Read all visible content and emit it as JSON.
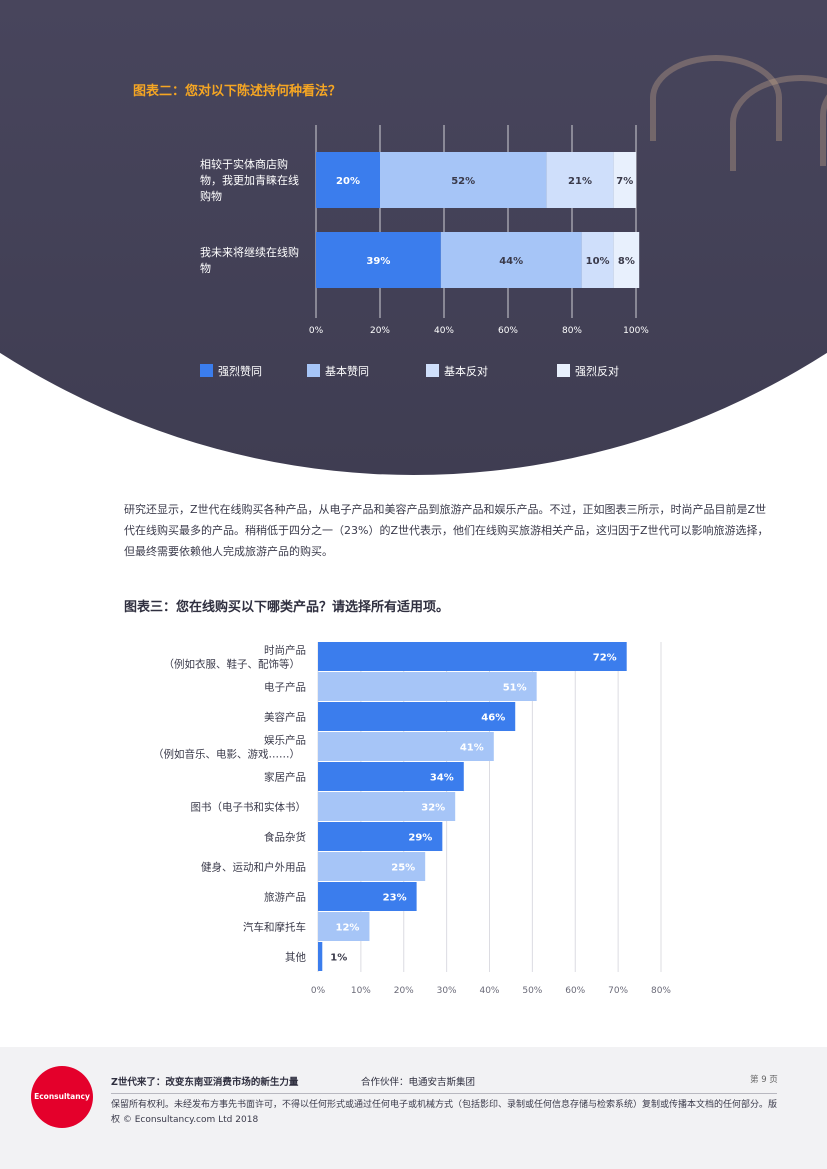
{
  "chart2": {
    "title": "图表二：您对以下陈述持何种看法？",
    "rows": [
      {
        "label": "相较于实体商店购物，我更加青睐在线购物"
      },
      {
        "label": "我未来将继续在线购物"
      }
    ],
    "x_ticks": [
      "0%",
      "20%",
      "40%",
      "60%",
      "80%",
      "100%"
    ],
    "legend": [
      {
        "label": "强烈赞同",
        "color": "#3b7ded"
      },
      {
        "label": "基本赞同",
        "color": "#a6c5f7"
      },
      {
        "label": "基本反对",
        "color": "#cfdffb"
      },
      {
        "label": "强烈反对",
        "color": "#e8f0fd"
      }
    ]
  },
  "chart_data": [
    {
      "type": "bar",
      "orientation": "horizontal",
      "stacked": true,
      "title": "图表二：您对以下陈述持何种看法？",
      "categories": [
        "相较于实体商店购物，我更加青睐在线购物",
        "我未来将继续在线购物"
      ],
      "series": [
        {
          "name": "强烈赞同",
          "values": [
            20,
            39
          ],
          "labels": [
            "20%",
            "39%"
          ],
          "color": "#3b7ded"
        },
        {
          "name": "基本赞同",
          "values": [
            52,
            44
          ],
          "labels": [
            "52%",
            "44%"
          ],
          "color": "#a6c5f7"
        },
        {
          "name": "基本反对",
          "values": [
            21,
            10
          ],
          "labels": [
            "21%",
            "10%"
          ],
          "color": "#cfdffb"
        },
        {
          "name": "强烈反对",
          "values": [
            7,
            8
          ],
          "labels": [
            "7%",
            "8%"
          ],
          "color": "#e8f0fd"
        }
      ],
      "xlim": [
        0,
        100
      ],
      "legend": "bottom",
      "grid": true
    },
    {
      "type": "bar",
      "orientation": "horizontal",
      "title": "图表三：您在线购买以下哪类产品？请选择所有适用项。",
      "categories": [
        {
          "line1": "时尚产品",
          "line2": "（例如衣服、鞋子、配饰等）"
        },
        {
          "line1": "电子产品"
        },
        {
          "line1": "美容产品"
        },
        {
          "line1": "娱乐产品",
          "line2": "（例如音乐、电影、游戏……）"
        },
        {
          "line1": "家居产品"
        },
        {
          "line1": "图书（电子书和实体书）"
        },
        {
          "line1": "食品杂货"
        },
        {
          "line1": "健身、运动和户外用品"
        },
        {
          "line1": "旅游产品"
        },
        {
          "line1": "汽车和摩托车"
        },
        {
          "line1": "其他"
        }
      ],
      "values": [
        72,
        51,
        46,
        41,
        34,
        32,
        29,
        25,
        23,
        12,
        1
      ],
      "value_labels": [
        "72%",
        "51%",
        "46%",
        "41%",
        "34%",
        "32%",
        "29%",
        "25%",
        "23%",
        "12%",
        "1%"
      ],
      "x_ticks": [
        "0%",
        "10%",
        "20%",
        "30%",
        "40%",
        "50%",
        "60%",
        "70%",
        "80%"
      ],
      "xlim": [
        0,
        80
      ],
      "colors": [
        "#3b7ded",
        "#a6c5f7"
      ],
      "grid": true
    }
  ],
  "paragraph": "研究还显示，Z世代在线购买各种产品，从电子产品和美容产品到旅游产品和娱乐产品。不过，正如图表三所示，时尚产品目前是Z世代在线购买最多的产品。稍稍低于四分之一（23%）的Z世代表示，他们在线购买旅游相关产品，这归因于Z世代可以影响旅游选择，但最终需要依赖他人完成旅游产品的购买。",
  "chart3": {
    "title": "图表三：您在线购买以下哪类产品？请选择所有适用项。"
  },
  "footer": {
    "logo": "Econsultancy",
    "title": "Z世代来了：改变东南亚消费市场的新生力量",
    "partner": "合作伙伴：电通安吉斯集团",
    "page": "第 9 页",
    "copyright": "保留所有权利。未经发布方事先书面许可，不得以任何形式或通过任何电子或机械方式（包括影印、录制或任何信息存储与检索系统）复制或传播本文档的任何部分。版权 © Econsultancy.com Ltd 2018"
  }
}
